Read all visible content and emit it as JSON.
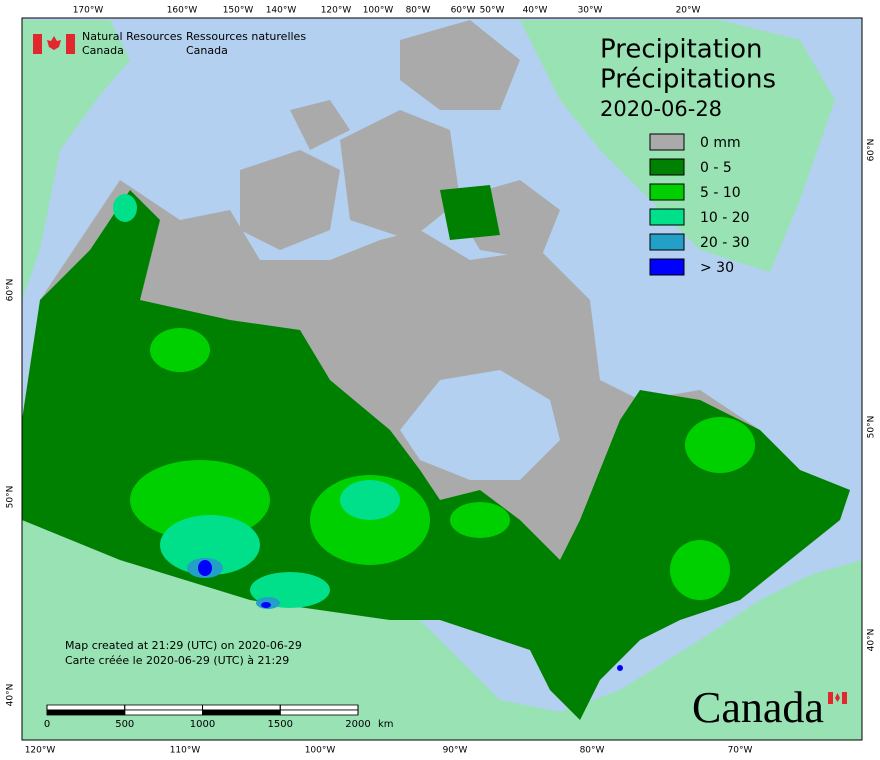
{
  "header": {
    "en": [
      "Natural Resources",
      "Canada"
    ],
    "fr": [
      "Ressources naturelles",
      "Canada"
    ]
  },
  "title": [
    "Precipitation",
    "Précipitations",
    "2020-06-28"
  ],
  "legend": [
    {
      "label": "0 mm",
      "color": "#aaaaaa"
    },
    {
      "label": "0 - 5",
      "color": "#008000"
    },
    {
      "label": "5 - 10",
      "color": "#00d000"
    },
    {
      "label": "10 - 20",
      "color": "#00e08a"
    },
    {
      "label": "20 - 30",
      "color": "#22a0c8"
    },
    {
      "label": "> 30",
      "color": "#0000ff"
    }
  ],
  "graticule": {
    "top": [
      "170°W",
      "160°W",
      "150°W",
      "140°W",
      "120°W",
      "100°W",
      "80°W",
      "60°W",
      "50°W",
      "40°W",
      "30°W",
      "20°W"
    ],
    "bottom": [
      "120°W",
      "110°W",
      "100°W",
      "90°W",
      "80°W",
      "70°W"
    ],
    "left": [
      "60°N",
      "50°N",
      "40°N"
    ],
    "right": [
      "60°N",
      "50°N",
      "40°N"
    ]
  },
  "credits": [
    "Map created at 21:29 (UTC) on 2020-06-29",
    "Carte créée le 2020-06-29 (UTC) à 21:29"
  ],
  "scale": {
    "ticks": [
      0,
      500,
      1000,
      1500,
      2000
    ],
    "unit": "km"
  },
  "wordmark": "Canada"
}
